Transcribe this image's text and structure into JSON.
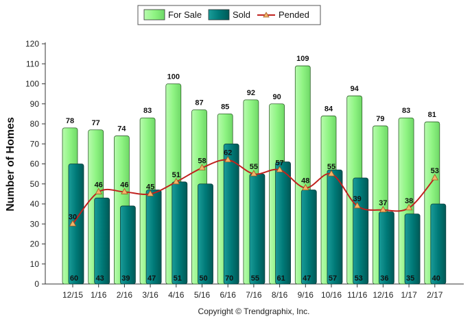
{
  "chart_data": {
    "type": "bar",
    "categories": [
      "12/15",
      "1/16",
      "2/16",
      "3/16",
      "4/16",
      "5/16",
      "6/16",
      "7/16",
      "8/16",
      "9/16",
      "10/16",
      "11/16",
      "12/16",
      "1/17",
      "2/17"
    ],
    "series": [
      {
        "name": "For Sale",
        "kind": "bar",
        "color": "#99f98e",
        "values": [
          78,
          77,
          74,
          83,
          100,
          87,
          85,
          92,
          90,
          109,
          84,
          94,
          79,
          83,
          81
        ]
      },
      {
        "name": "Sold",
        "kind": "bar",
        "color": "#007a78",
        "values": [
          60,
          43,
          39,
          47,
          51,
          50,
          70,
          55,
          61,
          47,
          57,
          53,
          36,
          35,
          40
        ]
      },
      {
        "name": "Pended",
        "kind": "line",
        "color": "#c0211e",
        "marker_color": "#f4b368",
        "values": [
          30,
          46,
          46,
          45,
          51,
          58,
          62,
          55,
          57,
          48,
          55,
          39,
          37,
          38,
          53
        ]
      }
    ],
    "ylabel": "Number of Homes",
    "ylim": [
      0,
      120
    ],
    "yticks": [
      0,
      10,
      20,
      30,
      40,
      50,
      60,
      70,
      80,
      90,
      100,
      110,
      120
    ],
    "grid": false,
    "legend_position": "top-center",
    "credit": "Copyright © Trendgraphix, Inc."
  }
}
